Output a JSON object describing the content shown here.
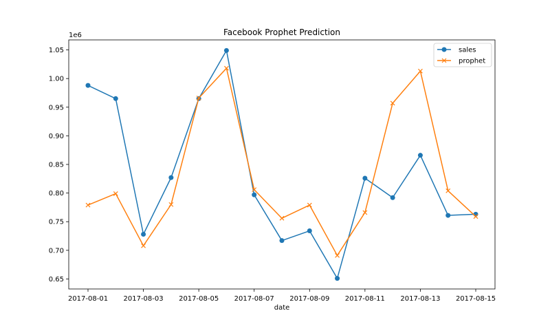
{
  "chart_data": {
    "type": "line",
    "title": "Facebook Prophet Prediction",
    "xlabel": "date",
    "ylabel": "",
    "y_offset_label": "1e6",
    "x": [
      "2017-08-01",
      "2017-08-02",
      "2017-08-03",
      "2017-08-04",
      "2017-08-05",
      "2017-08-06",
      "2017-08-07",
      "2017-08-08",
      "2017-08-09",
      "2017-08-10",
      "2017-08-11",
      "2017-08-12",
      "2017-08-13",
      "2017-08-14",
      "2017-08-15"
    ],
    "x_ticks": [
      "2017-08-01",
      "2017-08-03",
      "2017-08-05",
      "2017-08-07",
      "2017-08-09",
      "2017-08-11",
      "2017-08-13",
      "2017-08-15"
    ],
    "y_ticks": [
      0.65,
      0.7,
      0.75,
      0.8,
      0.85,
      0.9,
      0.95,
      1.0,
      1.05
    ],
    "y_tick_labels": [
      "0.65",
      "0.70",
      "0.75",
      "0.80",
      "0.85",
      "0.90",
      "0.95",
      "1.00",
      "1.05"
    ],
    "ylim": [
      0.6325,
      1.0675
    ],
    "y_scale": 1000000,
    "grid": false,
    "legend_position": "top-right",
    "series": [
      {
        "name": "sales",
        "color": "#1f77b4",
        "marker": "circle",
        "values": [
          988000,
          965000,
          728000,
          827000,
          965000,
          1049000,
          797000,
          717000,
          734000,
          651000,
          826000,
          792000,
          866000,
          761000,
          763000
        ]
      },
      {
        "name": "prophet",
        "color": "#ff7f0e",
        "marker": "x",
        "values": [
          779000,
          799000,
          708000,
          780000,
          966000,
          1018000,
          806000,
          756000,
          779000,
          691000,
          766000,
          957000,
          1013000,
          804000,
          759000
        ]
      }
    ]
  }
}
